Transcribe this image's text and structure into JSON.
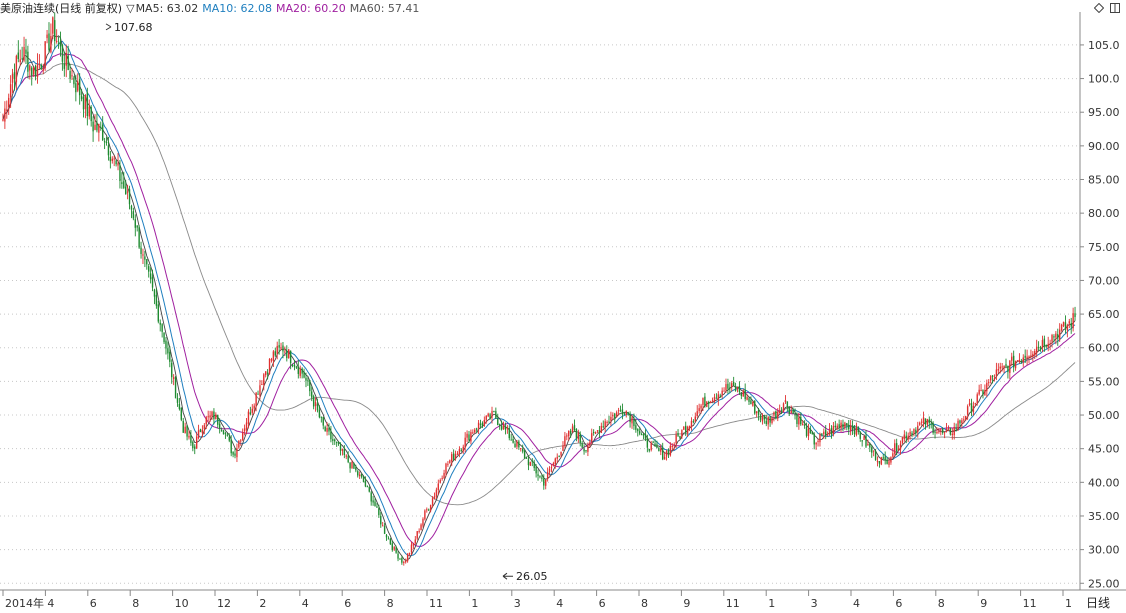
{
  "header": {
    "instrument": "美原油连续(日线 前复权)",
    "indicator_menu_icon": "triangle-down-icon",
    "ma5": "MA5: 63.02",
    "ma10": "MA10: 62.08",
    "ma20": "MA20: 60.20",
    "ma60": "MA60: 57.41"
  },
  "toolbar": {
    "icons": [
      "diamond-icon",
      "panel-toggle-icon"
    ]
  },
  "colors": {
    "up": "#e03030",
    "down": "#1e8a30",
    "ma5": "#444444",
    "ma10": "#1f7fbf",
    "ma20": "#a020a0",
    "ma60": "#8a8a8a",
    "grid": "#c8c8c8"
  },
  "chart_data": {
    "type": "candlestick",
    "period_label": "日线",
    "ylim": [
      24,
      109
    ],
    "grid": "horizontal-dotted",
    "y_ticks": [
      "25.00",
      "30.00",
      "35.00",
      "40.00",
      "45.00",
      "50.00",
      "55.00",
      "60.00",
      "65.00",
      "70.00",
      "75.00",
      "80.00",
      "85.00",
      "90.00",
      "95.00",
      "100.0",
      "105.0"
    ],
    "x_ticks": [
      "2014年",
      "4",
      "6",
      "8",
      "10",
      "12",
      "2",
      "4",
      "6",
      "8",
      "11",
      "1",
      "3",
      "4",
      "6",
      "8",
      "9",
      "11",
      "1",
      "3",
      "4",
      "6",
      "8",
      "9",
      "11",
      "1"
    ],
    "high_marker": "107.68",
    "low_marker": "26.05",
    "close_anchors": [
      94,
      101,
      104,
      101,
      103,
      107.5,
      103,
      100,
      97,
      93,
      92,
      88,
      84,
      80,
      73,
      68,
      62,
      55,
      48,
      45,
      49,
      50,
      48,
      44,
      48,
      52,
      56,
      59,
      60,
      58,
      56,
      52,
      48,
      46,
      44,
      42,
      40,
      37,
      33,
      30,
      28,
      31,
      35,
      38,
      42,
      44,
      46,
      48,
      49,
      50,
      48,
      46,
      44,
      42,
      40,
      43,
      46,
      48,
      45,
      47,
      49,
      50,
      51,
      49,
      46,
      45,
      44,
      46,
      48,
      50,
      52,
      53,
      54,
      54,
      53,
      51,
      49,
      50,
      52,
      50,
      48,
      46,
      47,
      48,
      49,
      48,
      46,
      44,
      43,
      45,
      47,
      48,
      49,
      48,
      47,
      48,
      50,
      52,
      54,
      56,
      57,
      58,
      59,
      60,
      61,
      62,
      63,
      64.5
    ]
  }
}
